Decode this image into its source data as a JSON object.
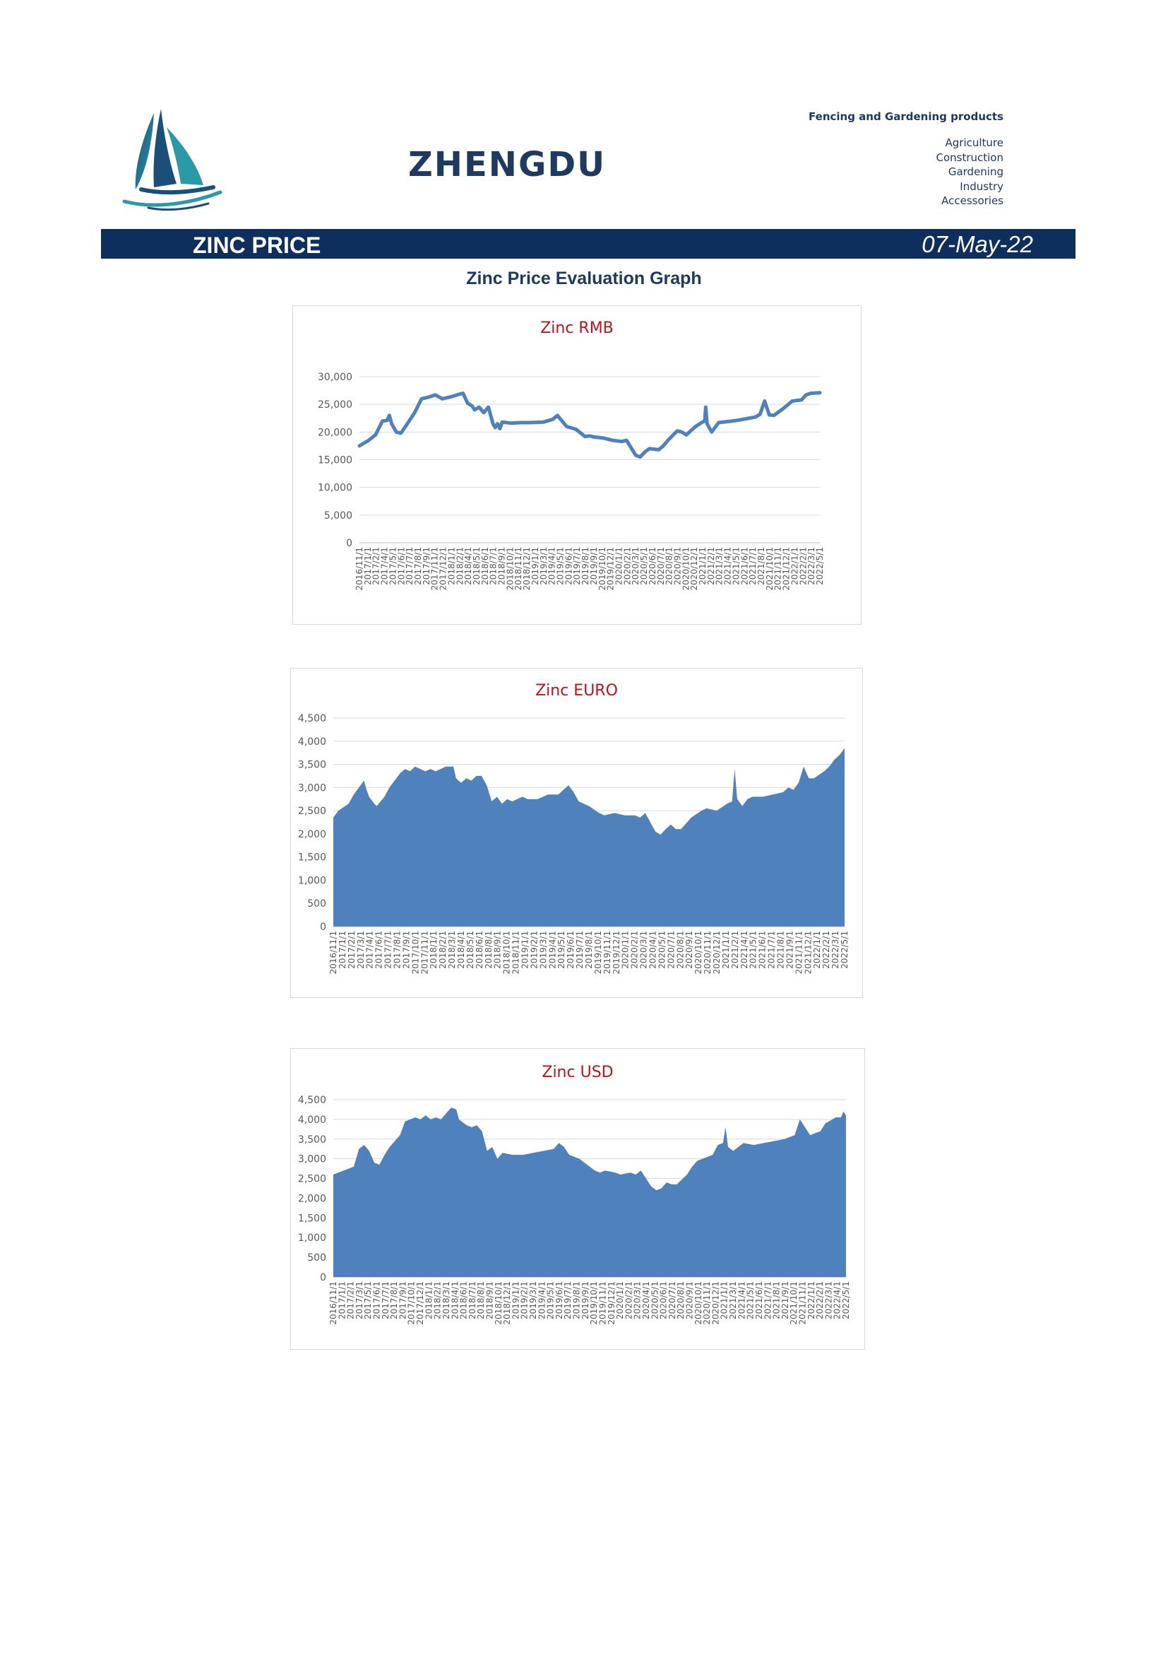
{
  "header": {
    "brand": "ZHENGDU",
    "tagline": "Fencing and Gardening products",
    "categories": [
      "Agriculture",
      "Construction",
      "Gardening",
      "Industry",
      "Accessories"
    ]
  },
  "banner": {
    "title": "ZINC PRICE",
    "date": "07-May-22"
  },
  "page_subtitle": "Zinc Price Evaluation Graph",
  "colors": {
    "banner": "#0e2e5e",
    "series": "#4f81bd",
    "chart_title": "#c0121b"
  },
  "chart_data": [
    {
      "id": "rmb",
      "type": "line",
      "title": "Zinc RMB",
      "ylim": [
        0,
        30000
      ],
      "yticks": [
        0,
        5000,
        10000,
        15000,
        20000,
        25000,
        30000
      ],
      "ytick_labels": [
        "0",
        "5,000",
        "10,000",
        "15,000",
        "20,000",
        "25,000",
        "30,000"
      ],
      "x_labels": [
        "2016/11/1",
        "2017/1/1",
        "2017/2/1",
        "2017/4/1",
        "2017/5/1",
        "2017/6/1",
        "2017/7/1",
        "2017/8/1",
        "2017/9/1",
        "2017/11/1",
        "2017/12/1",
        "2018/1/1",
        "2018/2/1",
        "2018/4/1",
        "2018/5/1",
        "2018/6/1",
        "2018/7/1",
        "2018/9/1",
        "2018/10/1",
        "2018/11/1",
        "2018/12/1",
        "2019/1/1",
        "2019/3/1",
        "2019/4/1",
        "2019/5/1",
        "2019/6/1",
        "2019/7/1",
        "2019/8/1",
        "2019/9/1",
        "2019/10/1",
        "2019/12/1",
        "2020/1/1",
        "2020/2/1",
        "2020/3/1",
        "2020/5/1",
        "2020/6/1",
        "2020/7/1",
        "2020/8/1",
        "2020/9/1",
        "2020/10/1",
        "2020/12/1",
        "2021/1/1",
        "2021/2/1",
        "2021/3/1",
        "2021/4/1",
        "2021/5/1",
        "2021/6/1",
        "2021/7/1",
        "2021/8/1",
        "2021/10/1",
        "2021/11/1",
        "2021/12/1",
        "2022/1/1",
        "2022/2/1",
        "2022/3/1",
        "2022/5/1"
      ],
      "grid": true,
      "points": [
        [
          0,
          17500
        ],
        [
          0.02,
          18500
        ],
        [
          0.035,
          19500
        ],
        [
          0.05,
          22000
        ],
        [
          0.06,
          22100
        ],
        [
          0.065,
          23000
        ],
        [
          0.07,
          21500
        ],
        [
          0.08,
          20000
        ],
        [
          0.09,
          19800
        ],
        [
          0.1,
          21000
        ],
        [
          0.12,
          23500
        ],
        [
          0.135,
          26000
        ],
        [
          0.15,
          26300
        ],
        [
          0.165,
          26700
        ],
        [
          0.18,
          26000
        ],
        [
          0.2,
          26400
        ],
        [
          0.215,
          26800
        ],
        [
          0.225,
          27000
        ],
        [
          0.235,
          25200
        ],
        [
          0.245,
          24700
        ],
        [
          0.25,
          24000
        ],
        [
          0.26,
          24500
        ],
        [
          0.27,
          23500
        ],
        [
          0.28,
          24500
        ],
        [
          0.29,
          21500
        ],
        [
          0.295,
          20800
        ],
        [
          0.3,
          21500
        ],
        [
          0.305,
          20600
        ],
        [
          0.31,
          21800
        ],
        [
          0.33,
          21600
        ],
        [
          0.35,
          21700
        ],
        [
          0.37,
          21700
        ],
        [
          0.4,
          21800
        ],
        [
          0.42,
          22300
        ],
        [
          0.43,
          23000
        ],
        [
          0.44,
          22000
        ],
        [
          0.45,
          21000
        ],
        [
          0.47,
          20500
        ],
        [
          0.49,
          19200
        ],
        [
          0.5,
          19300
        ],
        [
          0.51,
          19100
        ],
        [
          0.53,
          18900
        ],
        [
          0.55,
          18500
        ],
        [
          0.57,
          18300
        ],
        [
          0.58,
          18500
        ],
        [
          0.6,
          15800
        ],
        [
          0.61,
          15500
        ],
        [
          0.62,
          16400
        ],
        [
          0.63,
          17000
        ],
        [
          0.65,
          16800
        ],
        [
          0.66,
          17500
        ],
        [
          0.67,
          18500
        ],
        [
          0.69,
          20200
        ],
        [
          0.7,
          20000
        ],
        [
          0.71,
          19500
        ],
        [
          0.73,
          21000
        ],
        [
          0.745,
          21800
        ],
        [
          0.75,
          22000
        ],
        [
          0.752,
          24500
        ],
        [
          0.755,
          21500
        ],
        [
          0.765,
          20000
        ],
        [
          0.78,
          21700
        ],
        [
          0.8,
          21900
        ],
        [
          0.82,
          22100
        ],
        [
          0.84,
          22400
        ],
        [
          0.86,
          22700
        ],
        [
          0.87,
          23200
        ],
        [
          0.88,
          25600
        ],
        [
          0.89,
          23100
        ],
        [
          0.9,
          23000
        ],
        [
          0.92,
          24200
        ],
        [
          0.94,
          25600
        ],
        [
          0.96,
          25800
        ],
        [
          0.97,
          26700
        ],
        [
          0.98,
          27000
        ],
        [
          1,
          27100
        ]
      ]
    },
    {
      "id": "euro",
      "type": "area",
      "title": "Zinc EURO",
      "ylim": [
        0,
        4500
      ],
      "yticks": [
        0,
        500,
        1000,
        1500,
        2000,
        2500,
        3000,
        3500,
        4000,
        4500
      ],
      "ytick_labels": [
        "0",
        "500",
        "1,000",
        "1,500",
        "2,000",
        "2,500",
        "3,000",
        "3,500",
        "4,000",
        "4,500"
      ],
      "x_labels": [
        "2016/11/1",
        "2017/1/1",
        "2017/2/1",
        "2017/3/1",
        "2017/4/1",
        "2017/6/1",
        "2017/7/1",
        "2017/8/1",
        "2017/9/1",
        "2017/10/1",
        "2017/11/1",
        "2018/1/1",
        "2018/2/1",
        "2018/3/1",
        "2018/4/1",
        "2018/5/1",
        "2018/6/1",
        "2018/8/1",
        "2018/9/1",
        "2018/10/1",
        "2018/11/1",
        "2019/1/1",
        "2019/2/1",
        "2019/3/1",
        "2019/4/1",
        "2019/5/1",
        "2019/6/1",
        "2019/7/1",
        "2019/8/1",
        "2019/10/1",
        "2019/11/1",
        "2019/12/1",
        "2020/1/1",
        "2020/2/1",
        "2020/3/1",
        "2020/4/1",
        "2020/5/1",
        "2020/7/1",
        "2020/8/1",
        "2020/9/1",
        "2020/10/1",
        "2020/11/1",
        "2020/12/1",
        "2021/1/1",
        "2021/2/1",
        "2021/4/1",
        "2021/5/1",
        "2021/6/1",
        "2021/7/1",
        "2021/8/1",
        "2021/9/1",
        "2021/11/1",
        "2021/12/1",
        "2022/1/1",
        "2022/2/1",
        "2022/3/1",
        "2022/5/1"
      ],
      "grid": true,
      "points": [
        [
          0,
          2350
        ],
        [
          0.01,
          2500
        ],
        [
          0.03,
          2650
        ],
        [
          0.04,
          2850
        ],
        [
          0.05,
          3000
        ],
        [
          0.06,
          3150
        ],
        [
          0.065,
          2950
        ],
        [
          0.07,
          2800
        ],
        [
          0.08,
          2650
        ],
        [
          0.085,
          2600
        ],
        [
          0.1,
          2800
        ],
        [
          0.11,
          3000
        ],
        [
          0.13,
          3300
        ],
        [
          0.14,
          3400
        ],
        [
          0.15,
          3350
        ],
        [
          0.16,
          3450
        ],
        [
          0.18,
          3350
        ],
        [
          0.19,
          3400
        ],
        [
          0.2,
          3350
        ],
        [
          0.22,
          3450
        ],
        [
          0.235,
          3450
        ],
        [
          0.24,
          3200
        ],
        [
          0.25,
          3100
        ],
        [
          0.26,
          3200
        ],
        [
          0.27,
          3150
        ],
        [
          0.28,
          3250
        ],
        [
          0.29,
          3250
        ],
        [
          0.3,
          3050
        ],
        [
          0.31,
          2700
        ],
        [
          0.32,
          2800
        ],
        [
          0.33,
          2650
        ],
        [
          0.34,
          2750
        ],
        [
          0.35,
          2700
        ],
        [
          0.37,
          2800
        ],
        [
          0.38,
          2750
        ],
        [
          0.4,
          2750
        ],
        [
          0.42,
          2850
        ],
        [
          0.44,
          2850
        ],
        [
          0.46,
          3050
        ],
        [
          0.47,
          2900
        ],
        [
          0.48,
          2700
        ],
        [
          0.5,
          2600
        ],
        [
          0.52,
          2450
        ],
        [
          0.53,
          2400
        ],
        [
          0.55,
          2450
        ],
        [
          0.57,
          2400
        ],
        [
          0.59,
          2400
        ],
        [
          0.6,
          2350
        ],
        [
          0.61,
          2450
        ],
        [
          0.62,
          2250
        ],
        [
          0.63,
          2050
        ],
        [
          0.64,
          1980
        ],
        [
          0.65,
          2100
        ],
        [
          0.66,
          2200
        ],
        [
          0.67,
          2100
        ],
        [
          0.68,
          2100
        ],
        [
          0.7,
          2350
        ],
        [
          0.72,
          2500
        ],
        [
          0.73,
          2550
        ],
        [
          0.75,
          2500
        ],
        [
          0.77,
          2650
        ],
        [
          0.78,
          2700
        ],
        [
          0.785,
          3400
        ],
        [
          0.79,
          2750
        ],
        [
          0.8,
          2600
        ],
        [
          0.81,
          2750
        ],
        [
          0.82,
          2800
        ],
        [
          0.84,
          2800
        ],
        [
          0.86,
          2850
        ],
        [
          0.88,
          2900
        ],
        [
          0.89,
          3000
        ],
        [
          0.9,
          2950
        ],
        [
          0.91,
          3100
        ],
        [
          0.92,
          3450
        ],
        [
          0.93,
          3200
        ],
        [
          0.94,
          3200
        ],
        [
          0.96,
          3350
        ],
        [
          0.97,
          3450
        ],
        [
          0.98,
          3600
        ],
        [
          0.99,
          3700
        ],
        [
          1,
          3850
        ]
      ]
    },
    {
      "id": "usd",
      "type": "area",
      "title": "Zinc USD",
      "ylim": [
        0,
        4500
      ],
      "yticks": [
        0,
        500,
        1000,
        1500,
        2000,
        2500,
        3000,
        3500,
        4000,
        4500
      ],
      "ytick_labels": [
        "0",
        "500",
        "1,000",
        "1,500",
        "2,000",
        "2,500",
        "3,000",
        "3,500",
        "4,000",
        "4,500"
      ],
      "x_labels": [
        "2016/11/1",
        "2017/1/1",
        "2017/2/1",
        "2017/3/1",
        "2017/5/1",
        "2017/6/1",
        "2017/7/1",
        "2017/8/1",
        "2017/9/1",
        "2017/10/1",
        "2017/12/1",
        "2018/1/1",
        "2018/2/1",
        "2018/3/1",
        "2018/4/1",
        "2018/6/1",
        "2018/7/1",
        "2018/8/1",
        "2018/9/1",
        "2018/10/1",
        "2018/12/1",
        "2019/1/1",
        "2019/2/1",
        "2019/3/1",
        "2019/4/1",
        "2019/5/1",
        "2019/6/1",
        "2019/7/1",
        "2019/8/1",
        "2019/9/1",
        "2019/10/1",
        "2019/11/1",
        "2019/12/1",
        "2020/1/1",
        "2020/2/1",
        "2020/3/1",
        "2020/4/1",
        "2020/5/1",
        "2020/6/1",
        "2020/7/1",
        "2020/8/1",
        "2020/9/1",
        "2020/10/1",
        "2020/11/1",
        "2020/12/1",
        "2021/1/1",
        "2021/3/1",
        "2021/4/1",
        "2021/5/1",
        "2021/6/1",
        "2021/7/1",
        "2021/8/1",
        "2021/9/1",
        "2021/10/1",
        "2021/11/1",
        "2022/1/1",
        "2022/2/1",
        "2022/3/1",
        "2022/4/1",
        "2022/5/1"
      ],
      "grid": true,
      "points": [
        [
          0,
          2600
        ],
        [
          0.02,
          2700
        ],
        [
          0.04,
          2800
        ],
        [
          0.05,
          3250
        ],
        [
          0.06,
          3350
        ],
        [
          0.07,
          3200
        ],
        [
          0.08,
          2900
        ],
        [
          0.09,
          2850
        ],
        [
          0.1,
          3100
        ],
        [
          0.11,
          3300
        ],
        [
          0.13,
          3600
        ],
        [
          0.14,
          3950
        ],
        [
          0.16,
          4050
        ],
        [
          0.17,
          4000
        ],
        [
          0.18,
          4100
        ],
        [
          0.19,
          4000
        ],
        [
          0.2,
          4050
        ],
        [
          0.21,
          4000
        ],
        [
          0.22,
          4150
        ],
        [
          0.23,
          4300
        ],
        [
          0.24,
          4250
        ],
        [
          0.245,
          4000
        ],
        [
          0.25,
          3950
        ],
        [
          0.26,
          3850
        ],
        [
          0.27,
          3800
        ],
        [
          0.28,
          3850
        ],
        [
          0.29,
          3700
        ],
        [
          0.3,
          3200
        ],
        [
          0.31,
          3300
        ],
        [
          0.32,
          3000
        ],
        [
          0.33,
          3150
        ],
        [
          0.35,
          3100
        ],
        [
          0.37,
          3100
        ],
        [
          0.39,
          3150
        ],
        [
          0.41,
          3200
        ],
        [
          0.43,
          3250
        ],
        [
          0.44,
          3400
        ],
        [
          0.45,
          3300
        ],
        [
          0.46,
          3100
        ],
        [
          0.48,
          3000
        ],
        [
          0.5,
          2800
        ],
        [
          0.51,
          2700
        ],
        [
          0.52,
          2650
        ],
        [
          0.53,
          2700
        ],
        [
          0.55,
          2650
        ],
        [
          0.56,
          2600
        ],
        [
          0.58,
          2650
        ],
        [
          0.59,
          2600
        ],
        [
          0.6,
          2700
        ],
        [
          0.61,
          2500
        ],
        [
          0.62,
          2300
        ],
        [
          0.63,
          2200
        ],
        [
          0.64,
          2250
        ],
        [
          0.65,
          2400
        ],
        [
          0.66,
          2350
        ],
        [
          0.67,
          2350
        ],
        [
          0.69,
          2600
        ],
        [
          0.7,
          2800
        ],
        [
          0.71,
          2950
        ],
        [
          0.72,
          3000
        ],
        [
          0.74,
          3100
        ],
        [
          0.75,
          3350
        ],
        [
          0.76,
          3400
        ],
        [
          0.765,
          3800
        ],
        [
          0.77,
          3300
        ],
        [
          0.78,
          3200
        ],
        [
          0.8,
          3400
        ],
        [
          0.82,
          3350
        ],
        [
          0.84,
          3400
        ],
        [
          0.86,
          3450
        ],
        [
          0.88,
          3500
        ],
        [
          0.9,
          3600
        ],
        [
          0.91,
          4000
        ],
        [
          0.92,
          3800
        ],
        [
          0.93,
          3600
        ],
        [
          0.95,
          3700
        ],
        [
          0.96,
          3900
        ],
        [
          0.98,
          4050
        ],
        [
          0.99,
          4050
        ],
        [
          0.995,
          4200
        ],
        [
          1,
          4100
        ]
      ]
    }
  ]
}
